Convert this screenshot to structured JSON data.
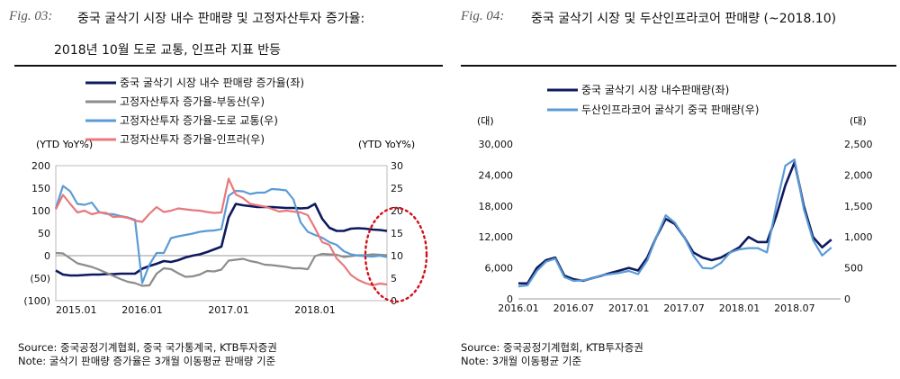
{
  "figures": [
    {
      "fig_label": "Fig. 03:",
      "title_line1": "중국 굴삭기 시장 내수 판매량 및 고정자산투자 증가율:",
      "title_line2": "2018년 10월 도로 교통, 인프라 지표 반등",
      "source": "Source: 중국공정기계협회, 중국 국가통계국, KTB투자증권",
      "note": "Note: 굴삭기 판매량 증가율은 3개월 이동평균 판매량 기준"
    },
    {
      "fig_label": "Fig. 04:",
      "title_line1": "중국 굴삭기 시장 및 두산인프라코어 판매량 (~2018.10)",
      "source": "Source: 중국공정기계협회, KTB투자증권",
      "note": "Note: 3개월 이동평균 기준"
    }
  ],
  "chart_data": [
    {
      "type": "line",
      "left_axis_title": "(YTD YoY%)",
      "right_axis_title": "(YTD YoY%)",
      "y_left": {
        "min": -100,
        "max": 200,
        "ticks": [
          "200",
          "150",
          "100",
          "50",
          "0",
          "(50)",
          "(100)"
        ]
      },
      "y_right": {
        "min": 0,
        "max": 30,
        "ticks": [
          "30",
          "25",
          "20",
          "15",
          "10",
          "5",
          "0"
        ]
      },
      "x_ticks": [
        "2015.01",
        "2016.01",
        "2017.01",
        "2018.01"
      ],
      "x_range": [
        0,
        46
      ],
      "legend": [
        "중국 굴삭기 시장 내수 판매량 증가율(좌)",
        "고정자산투자 증가율-부동산(우)",
        "고정자산투자 증가율-도로 교통(우)",
        "고정자산투자 증가율-인프라(우)"
      ],
      "series": [
        {
          "name": "중국 굴삭기 시장 내수 판매량 증가율(좌)",
          "axis": "left",
          "color": "#0d1a5e",
          "x": [
            0,
            1,
            2,
            3,
            4,
            5,
            6,
            7,
            8,
            9,
            10,
            11,
            12,
            13,
            14,
            15,
            16,
            17,
            18,
            19,
            20,
            21,
            22,
            23,
            24,
            25,
            26,
            27,
            28,
            29,
            30,
            31,
            32,
            33,
            34,
            35,
            36,
            37,
            38,
            39,
            40,
            41,
            42,
            43,
            44,
            45,
            46
          ],
          "y": [
            -33,
            -42,
            -44,
            -44,
            -43,
            -42,
            -42,
            -41,
            -41,
            -40,
            -40,
            -40,
            -29,
            -23,
            -18,
            -12,
            -14,
            -10,
            -4,
            0,
            3,
            8,
            14,
            20,
            85,
            115,
            112,
            110,
            108,
            108,
            108,
            107,
            106,
            106,
            105,
            106,
            115,
            82,
            62,
            55,
            55,
            60,
            61,
            60,
            58,
            57,
            55
          ]
        },
        {
          "name": "고정자산투자 증가율-부동산(우)",
          "axis": "right",
          "color": "#8c8c8c",
          "x": [
            0,
            1,
            2,
            3,
            4,
            5,
            6,
            7,
            8,
            9,
            10,
            11,
            12,
            13,
            14,
            15,
            16,
            17,
            18,
            19,
            20,
            21,
            22,
            23,
            24,
            25,
            26,
            27,
            28,
            29,
            30,
            31,
            32,
            33,
            34,
            35,
            36,
            37,
            38,
            39,
            40,
            41,
            42,
            43,
            44,
            45,
            46
          ],
          "y": [
            10.6,
            10.5,
            9.4,
            8.3,
            7.9,
            7.5,
            6.9,
            6.2,
            5.5,
            4.8,
            4.2,
            3.9,
            3.3,
            3.4,
            6.0,
            7.2,
            7.0,
            6.1,
            5.3,
            5.4,
            5.8,
            6.6,
            6.5,
            6.9,
            8.9,
            9.1,
            9.3,
            8.8,
            8.5,
            8.0,
            7.9,
            7.7,
            7.5,
            7.2,
            7.2,
            7.0,
            9.9,
            10.4,
            10.3,
            10.2,
            9.7,
            9.9,
            10.1,
            10.1,
            10.3,
            10.2,
            10.1
          ]
        },
        {
          "name": "고정자산투자 증가율-도로 교통(우)",
          "axis": "right",
          "color": "#5b9bd5",
          "x": [
            0,
            1,
            2,
            3,
            4,
            5,
            6,
            7,
            8,
            9,
            10,
            11,
            12,
            13,
            14,
            15,
            16,
            17,
            18,
            19,
            20,
            21,
            22,
            23,
            24,
            25,
            26,
            27,
            28,
            29,
            30,
            31,
            32,
            33,
            34,
            35,
            36,
            37,
            38,
            39,
            40,
            41,
            42,
            43,
            44,
            45,
            46
          ],
          "y": [
            20.5,
            25.5,
            24.3,
            21.5,
            21.3,
            21.8,
            19.7,
            19.3,
            19.2,
            18.8,
            18.5,
            18.0,
            3.9,
            8.0,
            10.6,
            10.6,
            13.9,
            14.3,
            14.6,
            14.9,
            15.3,
            15.5,
            15.6,
            15.9,
            23.3,
            24.4,
            24.3,
            23.7,
            24.0,
            24.0,
            24.8,
            24.7,
            24.5,
            22.5,
            17.4,
            15.3,
            14.6,
            14.0,
            13.0,
            12.4,
            11.0,
            10.3,
            10.0,
            9.9,
            9.8,
            10.0,
            9.7
          ]
        },
        {
          "name": "고정자산투자 증가율-인프라(우)",
          "axis": "right",
          "color": "#e8787c",
          "x": [
            0,
            1,
            2,
            3,
            4,
            5,
            6,
            7,
            8,
            9,
            10,
            11,
            12,
            13,
            14,
            15,
            16,
            17,
            18,
            19,
            20,
            21,
            22,
            23,
            24,
            25,
            26,
            27,
            28,
            29,
            30,
            31,
            32,
            33,
            34,
            35,
            36,
            37,
            38,
            39,
            40,
            41,
            42,
            43,
            44,
            45,
            46
          ],
          "y": [
            20.3,
            23.5,
            21.5,
            19.6,
            20.0,
            19.2,
            19.6,
            19.5,
            18.6,
            18.7,
            18.4,
            17.8,
            17.5,
            19.3,
            20.8,
            19.7,
            20.0,
            20.5,
            20.3,
            20.1,
            20.0,
            19.7,
            19.5,
            19.6,
            27.1,
            23.6,
            22.8,
            21.5,
            21.2,
            20.9,
            20.4,
            19.8,
            20.0,
            19.8,
            19.6,
            19.0,
            16.1,
            13.0,
            12.4,
            9.4,
            7.8,
            5.7,
            4.6,
            3.9,
            3.4,
            3.8,
            3.6
          ]
        }
      ]
    },
    {
      "type": "line",
      "left_axis_title": "(대)",
      "right_axis_title": "(대)",
      "y_left": {
        "min": 0,
        "max": 30000,
        "ticks": [
          "30,000",
          "24,000",
          "18,000",
          "12,000",
          "6,000",
          "0"
        ]
      },
      "y_right": {
        "min": 0,
        "max": 2500,
        "ticks": [
          "2,500",
          "2,000",
          "1,500",
          "1,000",
          "500",
          "0"
        ]
      },
      "x_ticks": [
        "2016.01",
        "2016.07",
        "2017.01",
        "2017.07",
        "2018.01",
        "2018.07"
      ],
      "x_range": [
        0,
        35
      ],
      "legend": [
        "중국 굴삭기 시장 내수판매량(좌)",
        "두산인프라코어 굴삭기 중국 판매량(우)"
      ],
      "series": [
        {
          "name": "중국 굴삭기 시장 내수판매량(좌)",
          "axis": "left",
          "color": "#0d1a5e",
          "x": [
            0,
            1,
            2,
            3,
            4,
            5,
            6,
            7,
            8,
            9,
            10,
            11,
            12,
            13,
            14,
            15,
            16,
            17,
            18,
            19,
            20,
            21,
            22,
            23,
            24,
            25,
            26,
            27,
            28,
            29,
            30,
            31,
            32,
            33,
            34
          ],
          "y": [
            3000,
            3000,
            6000,
            7500,
            8000,
            4500,
            3800,
            3500,
            4000,
            4500,
            5000,
            5500,
            6000,
            5500,
            8000,
            12000,
            15500,
            14500,
            12000,
            9000,
            8000,
            7500,
            8000,
            9000,
            10000,
            12000,
            11000,
            11000,
            16000,
            22000,
            26500,
            18000,
            12000,
            10000,
            11500
          ]
        },
        {
          "name": "두산인프라코어 굴삭기 중국 판매량(우)",
          "axis": "right",
          "color": "#5b9bd5",
          "x": [
            0,
            1,
            2,
            3,
            4,
            5,
            6,
            7,
            8,
            9,
            10,
            11,
            12,
            13,
            14,
            15,
            16,
            17,
            18,
            19,
            20,
            21,
            22,
            23,
            24,
            25,
            26,
            27,
            28,
            29,
            30,
            31,
            32,
            33,
            34
          ],
          "y": [
            200,
            220,
            450,
            600,
            650,
            350,
            290,
            300,
            330,
            380,
            400,
            420,
            450,
            400,
            620,
            1000,
            1350,
            1230,
            1000,
            700,
            500,
            490,
            580,
            750,
            800,
            820,
            820,
            750,
            1500,
            2150,
            2250,
            1450,
            950,
            700,
            830
          ]
        }
      ]
    }
  ]
}
